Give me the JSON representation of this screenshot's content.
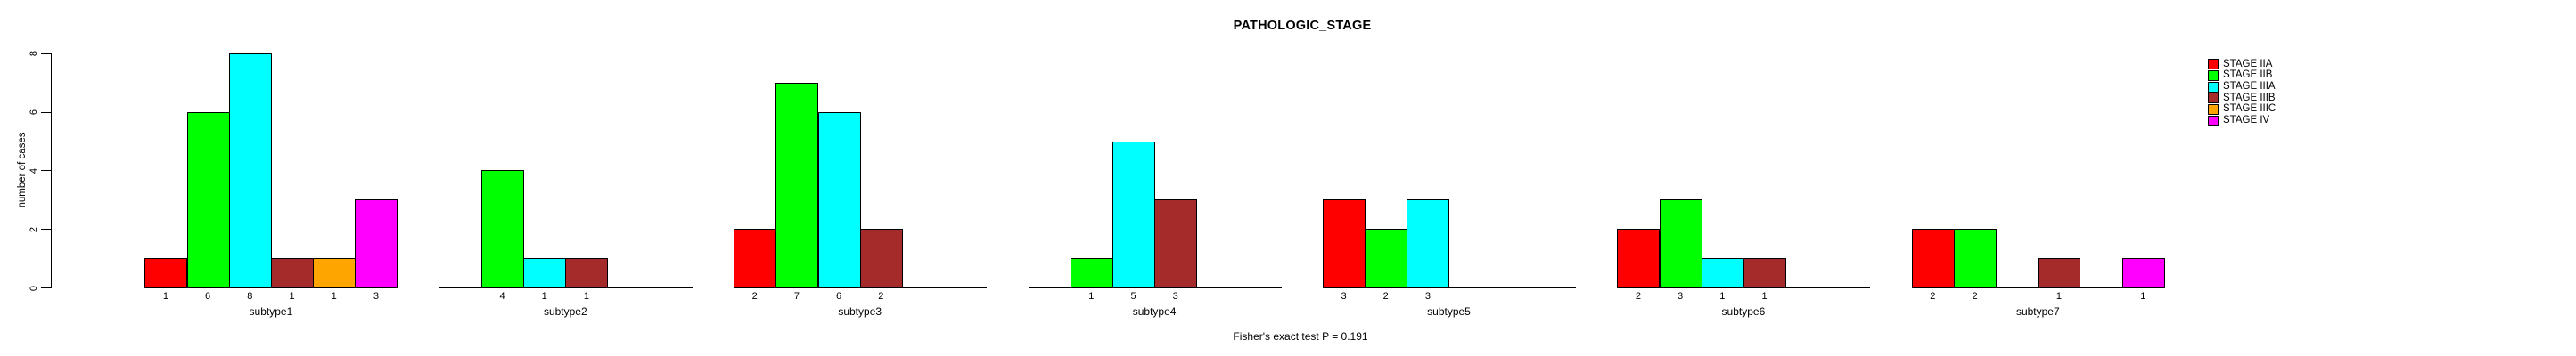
{
  "title": "PATHOLOGIC_STAGE",
  "footer": "Fisher's exact test P = 0.191",
  "chart_data": {
    "type": "bar",
    "title": "PATHOLOGIC_STAGE",
    "xlabel": "",
    "ylabel": "number of cases",
    "ylim": [
      0,
      8
    ],
    "yticks": [
      0,
      2,
      4,
      6,
      8
    ],
    "grid": false,
    "legend_position": "top-right",
    "annotation": "Fisher's exact test P = 0.191",
    "bar_value_labels": "counts shown beneath each nonzero bar",
    "categories": [
      "subtype1",
      "subtype2",
      "subtype3",
      "subtype4",
      "subtype5",
      "subtype6",
      "subtype7"
    ],
    "series": [
      {
        "name": "STAGE IIA",
        "color": "#FF0000",
        "values": [
          1,
          0,
          2,
          0,
          3,
          2,
          2
        ]
      },
      {
        "name": "STAGE IIB",
        "color": "#00FF00",
        "values": [
          6,
          4,
          7,
          1,
          2,
          3,
          2
        ]
      },
      {
        "name": "STAGE IIIA",
        "color": "#00FFFF",
        "values": [
          8,
          1,
          6,
          5,
          3,
          1,
          0
        ]
      },
      {
        "name": "STAGE IIIB",
        "color": "#A52A2A",
        "values": [
          1,
          1,
          2,
          3,
          0,
          1,
          1
        ]
      },
      {
        "name": "STAGE IIIC",
        "color": "#FFA500",
        "values": [
          1,
          0,
          0,
          0,
          0,
          0,
          0
        ]
      },
      {
        "name": "STAGE IV",
        "color": "#FF00FF",
        "values": [
          3,
          0,
          0,
          0,
          0,
          0,
          1
        ]
      }
    ]
  }
}
